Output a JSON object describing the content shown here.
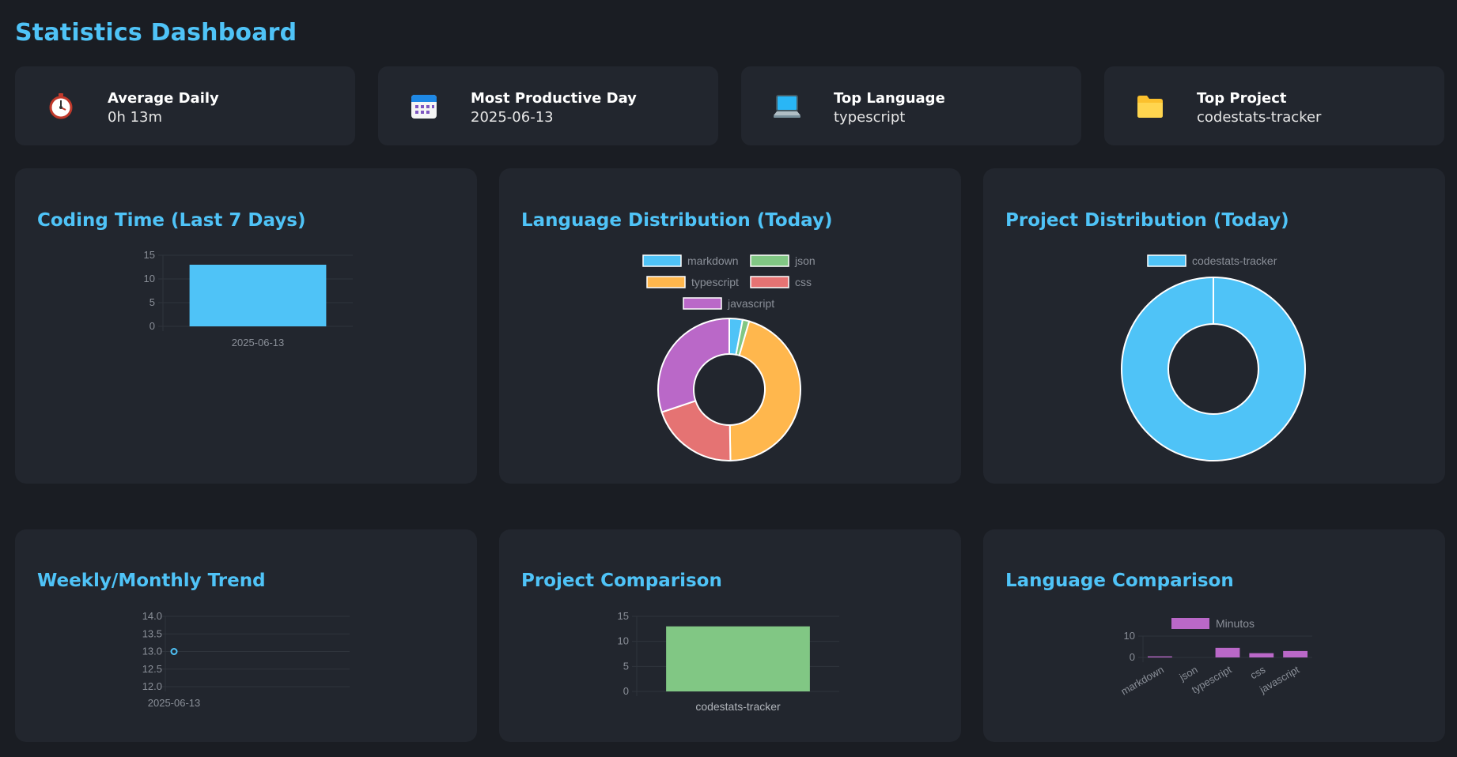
{
  "page": {
    "title": "Statistics Dashboard"
  },
  "stats": [
    {
      "label": "Average Daily",
      "value": "0h 13m",
      "icon": "stopwatch-icon"
    },
    {
      "label": "Most Productive Day",
      "value": "2025-06-13",
      "icon": "calendar-icon"
    },
    {
      "label": "Top Language",
      "value": "typescript",
      "icon": "laptop-icon"
    },
    {
      "label": "Top Project",
      "value": "codestats-tracker",
      "icon": "folder-icon"
    }
  ],
  "panels": {
    "coding_time": "Coding Time (Last 7 Days)",
    "language_distribution": "Language Distribution (Today)",
    "project_distribution": "Project Distribution (Today)",
    "trend": "Weekly/Monthly Trend",
    "project_comparison": "Project Comparison",
    "language_comparison": "Language Comparison"
  },
  "colors": {
    "accent": "#4fc3f7",
    "card": "#22262e",
    "bg": "#1a1d23"
  },
  "chart_data": [
    {
      "id": "coding_time",
      "type": "bar",
      "title": "Coding Time (Last 7 Days)",
      "categories": [
        "2025-06-13"
      ],
      "values": [
        13
      ],
      "ylim": [
        0,
        15
      ],
      "yticks": [
        0,
        5,
        10,
        15
      ],
      "color": "#4fc3f7"
    },
    {
      "id": "language_distribution",
      "type": "pie",
      "title": "Language Distribution (Today)",
      "labels": [
        "markdown",
        "json",
        "typescript",
        "css",
        "javascript"
      ],
      "values": [
        3,
        1.5,
        45,
        20,
        30
      ],
      "colors": [
        "#4fc3f7",
        "#81c784",
        "#ffb74d",
        "#e57373",
        "#ba68c8"
      ]
    },
    {
      "id": "project_distribution",
      "type": "pie",
      "title": "Project Distribution (Today)",
      "labels": [
        "codestats-tracker"
      ],
      "values": [
        100
      ],
      "colors": [
        "#4fc3f7"
      ]
    },
    {
      "id": "trend",
      "type": "line",
      "title": "Weekly/Monthly Trend",
      "x": [
        "2025-06-13"
      ],
      "y": [
        13.0
      ],
      "ylim": [
        12.0,
        14.0
      ],
      "yticks": [
        "12.0",
        "12.5",
        "13.0",
        "13.5",
        "14.0"
      ],
      "color": "#4fc3f7"
    },
    {
      "id": "project_comparison",
      "type": "bar",
      "title": "Project Comparison",
      "categories": [
        "codestats-tracker"
      ],
      "values": [
        13
      ],
      "ylim": [
        0,
        15
      ],
      "yticks": [
        0,
        5,
        10,
        15
      ],
      "color": "#81c784"
    },
    {
      "id": "language_comparison",
      "type": "bar",
      "title": "Language Comparison",
      "legend": "Minutos",
      "categories": [
        "markdown",
        "json",
        "typescript",
        "css",
        "javascript"
      ],
      "values": [
        0.5,
        0,
        4.5,
        2,
        3
      ],
      "ylim": [
        0,
        10
      ],
      "yticks": [
        0,
        10
      ],
      "color": "#ba68c8"
    }
  ]
}
